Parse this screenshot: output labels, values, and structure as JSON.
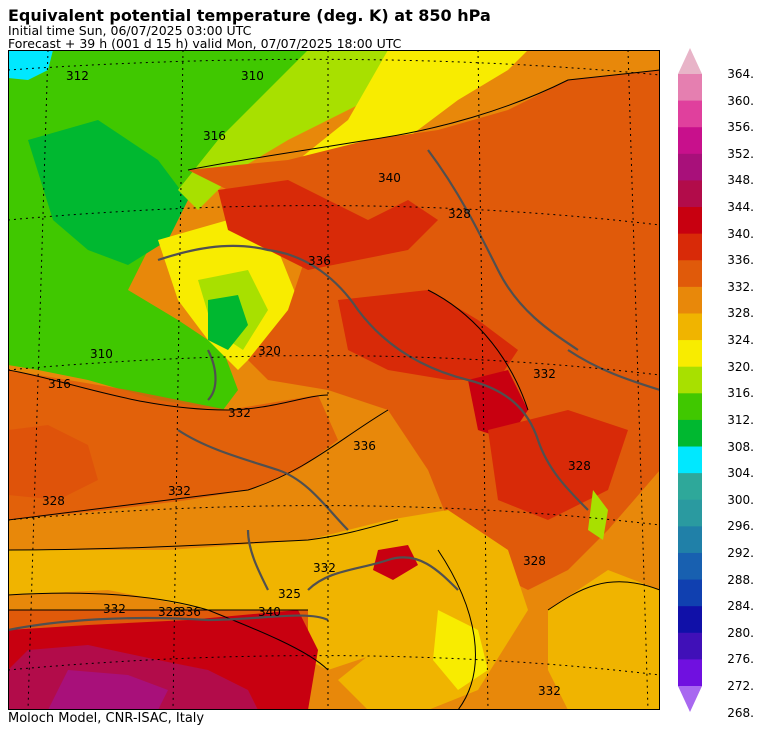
{
  "header": {
    "title": "Equivalent potential temperature (deg. K) at 850 hPa",
    "initial_time": "Initial time  Sun, 06/07/2025  03:00 UTC",
    "forecast": "Forecast  +  39 h  (001 d 15 h)  valid Mon, 07/07/2025 18:00 UTC"
  },
  "footer": {
    "credit": "Moloch Model, CNR-ISAC, Italy"
  },
  "colorbar": {
    "labels": [
      "364.",
      "360.",
      "356.",
      "352.",
      "348.",
      "344.",
      "340.",
      "336.",
      "332.",
      "328.",
      "324.",
      "320.",
      "316.",
      "312.",
      "308.",
      "304.",
      "300.",
      "296.",
      "292.",
      "288.",
      "284.",
      "280.",
      "276.",
      "272.",
      "268."
    ],
    "colors": [
      "#e8b4c8",
      "#e57fb0",
      "#e0409d",
      "#c8108c",
      "#a8107a",
      "#b20c4a",
      "#c80010",
      "#d82a08",
      "#e05a0a",
      "#e8880a",
      "#f0b400",
      "#f8ec00",
      "#a8e000",
      "#40c800",
      "#00b830",
      "#00e8ff",
      "#2ea89a",
      "#2a9aa0",
      "#2080a8",
      "#1860b0",
      "#1040b0",
      "#1010a8",
      "#4010b8",
      "#7010e0",
      "#a868f0"
    ]
  },
  "map_labels": [
    {
      "text": "312"
    },
    {
      "text": "310"
    },
    {
      "text": "316"
    },
    {
      "text": "340"
    },
    {
      "text": "320"
    },
    {
      "text": "336"
    },
    {
      "text": "316"
    },
    {
      "text": "310"
    },
    {
      "text": "332"
    },
    {
      "text": "328"
    },
    {
      "text": "328"
    },
    {
      "text": "332"
    },
    {
      "text": "336"
    },
    {
      "text": "332"
    },
    {
      "text": "328"
    },
    {
      "text": "332"
    },
    {
      "text": "328"
    },
    {
      "text": "332"
    },
    {
      "text": "336"
    },
    {
      "text": "340"
    },
    {
      "text": "325"
    },
    {
      "text": "328"
    },
    {
      "text": "332"
    }
  ]
}
